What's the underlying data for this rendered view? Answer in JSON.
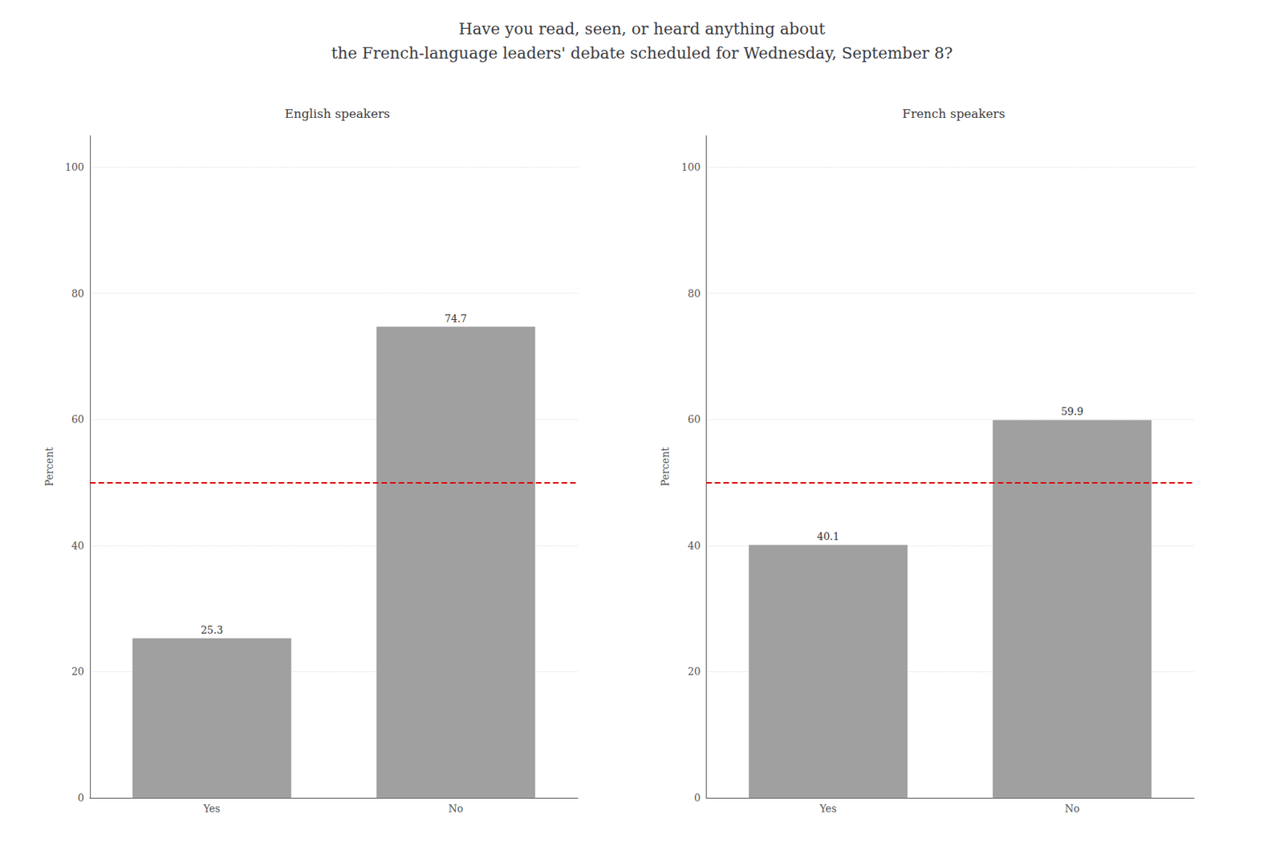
{
  "chart_data": [
    {
      "type": "bar",
      "title": "Have you read, seen, or heard anything about\nthe French-language leaders' debate scheduled for Wednesday, September 8?",
      "subtitle": "English speakers",
      "categories": [
        "Yes",
        "No"
      ],
      "values": [
        25.3,
        74.7
      ],
      "color": "#a0a0a0",
      "ylabel": "Percent",
      "ylim": [
        0,
        105
      ],
      "yticks": [
        0,
        20,
        40,
        60,
        80,
        100
      ],
      "grid": true,
      "data_labels": true,
      "reference_line": {
        "y": 50,
        "color": "#dd0000",
        "line_style": "dashed"
      }
    },
    {
      "type": "bar",
      "subtitle": "French speakers",
      "categories": [
        "Yes",
        "No"
      ],
      "values": [
        40.1,
        59.9
      ],
      "color": "#a0a0a0",
      "ylabel": "Percent",
      "ylim": [
        0,
        105
      ],
      "yticks": [
        0,
        20,
        40,
        60,
        80,
        100
      ],
      "grid": true,
      "data_labels": true,
      "reference_line": {
        "y": 50,
        "color": "#dd0000",
        "line_style": "dashed"
      }
    }
  ]
}
